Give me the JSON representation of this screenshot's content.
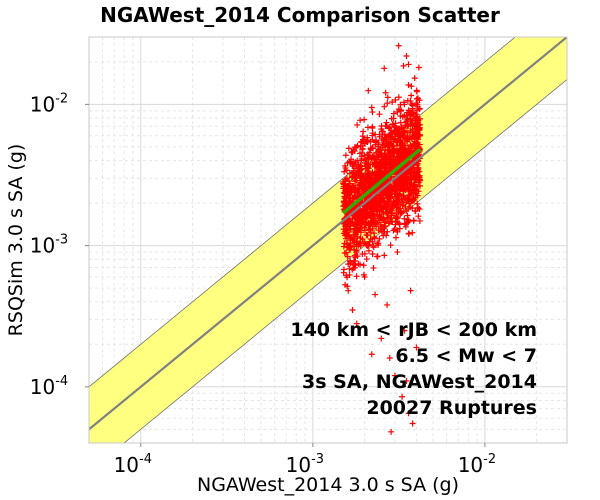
{
  "chart_data": {
    "type": "scatter",
    "title": "NGAWest_2014 Comparison Scatter",
    "xlabel": "NGAWest_2014 3.0 s SA (g)",
    "ylabel": "RSQSim 3.0 s SA (g)",
    "x_scale": "log",
    "y_scale": "log",
    "xlim": [
      5e-05,
      0.03
    ],
    "ylim": [
      4e-05,
      0.03
    ],
    "x_ticks": [
      {
        "value": 0.0001,
        "base": "10",
        "exp": "-4"
      },
      {
        "value": 0.001,
        "base": "10",
        "exp": "-3"
      },
      {
        "value": 0.01,
        "base": "10",
        "exp": "-2"
      }
    ],
    "y_ticks": [
      {
        "value": 0.0001,
        "base": "10",
        "exp": "-4"
      },
      {
        "value": 0.001,
        "base": "10",
        "exp": "-3"
      },
      {
        "value": 0.01,
        "base": "10",
        "exp": "-2"
      }
    ],
    "grid": true,
    "band": {
      "factor": 2,
      "color": "#ffff80"
    },
    "one_to_one_line": {
      "color": "#808080"
    },
    "fit_line": {
      "x": [
        0.0015,
        0.0042
      ],
      "y": [
        0.0017,
        0.0048
      ],
      "color": "#33aa00"
    },
    "scatter_series": {
      "marker": "+",
      "color": "#ff0000",
      "x_range": [
        0.0015,
        0.0042
      ],
      "y_median_range": [
        0.0017,
        0.0048
      ],
      "points": [
        [
          0.00155,
          0.0024
        ],
        [
          0.00165,
          0.00075
        ],
        [
          0.0017,
          0.00035
        ],
        [
          0.0018,
          0.00028
        ],
        [
          0.0019,
          0.0031
        ],
        [
          0.002,
          0.0006
        ],
        [
          0.0021,
          0.0125
        ],
        [
          0.0022,
          0.0095
        ],
        [
          0.0023,
          0.00045
        ],
        [
          0.0024,
          0.0032
        ],
        [
          0.0025,
          0.00022
        ],
        [
          0.0026,
          0.018
        ],
        [
          0.0027,
          0.00038
        ],
        [
          0.0028,
          0.00016
        ],
        [
          0.0029,
          0.0045
        ],
        [
          0.003,
          0.00012
        ],
        [
          0.0031,
          0.0009
        ],
        [
          0.0032,
          0.0059
        ],
        [
          0.0033,
          8.5e-05
        ],
        [
          0.0034,
          0.00025
        ],
        [
          0.0035,
          0.022
        ],
        [
          0.0036,
          6.5e-05
        ],
        [
          0.0037,
          0.00048
        ],
        [
          0.0038,
          5.5e-05
        ],
        [
          0.0039,
          0.0046
        ],
        [
          0.004,
          0.00019
        ],
        [
          0.0041,
          0.0068
        ],
        [
          0.00285,
          4.8e-05
        ],
        [
          0.00315,
          0.026
        ],
        [
          0.0035,
          0.00011
        ],
        [
          0.0022,
          0.00017
        ],
        [
          0.0027,
          0.0039
        ],
        [
          0.0032,
          0.0029
        ],
        [
          0.0017,
          0.0011
        ],
        [
          0.0038,
          0.0021
        ]
      ],
      "n_cloud_points": 1800
    },
    "annotations": [
      "140 km < rJB < 200 km",
      "6.5 < Mw < 7",
      "3s SA, NGAWest_2014",
      "20027 Ruptures"
    ]
  }
}
